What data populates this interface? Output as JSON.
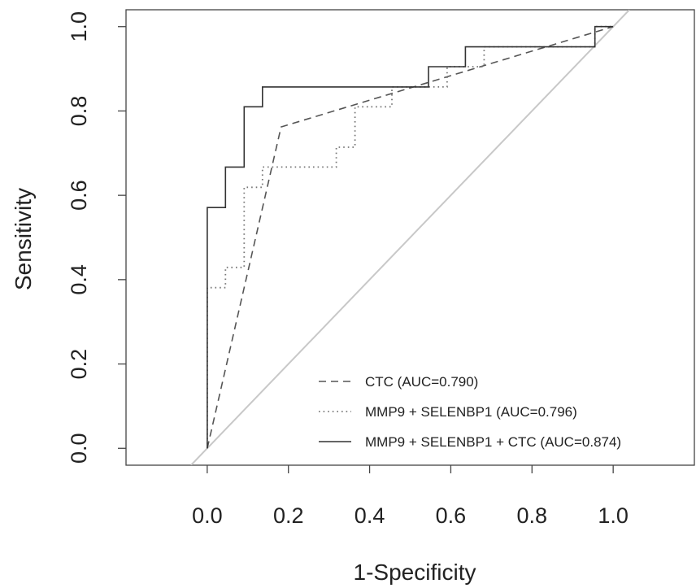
{
  "chart_data": {
    "type": "line",
    "title": "",
    "xlabel": "1-Specificity",
    "ylabel": "Sensitivity",
    "xlim": [
      -0.2,
      1.2
    ],
    "ylim": [
      -0.04,
      1.04
    ],
    "x_ticks": [
      "0.0",
      "0.2",
      "0.4",
      "0.6",
      "0.8",
      "1.0"
    ],
    "y_ticks": [
      "0.0",
      "0.2",
      "0.4",
      "0.6",
      "0.8",
      "1.0"
    ],
    "grid": false,
    "legend_position": "bottom-right",
    "reference_line": {
      "x": [
        -0.04,
        1.04
      ],
      "y": [
        -0.04,
        1.04
      ],
      "color": "#c8c8c8"
    },
    "series": [
      {
        "name": "CTC (AUC=0.790)",
        "style": "dashed",
        "color": "#555555",
        "x": [
          0.0,
          0.182,
          1.0
        ],
        "y": [
          0.0,
          0.762,
          1.0
        ]
      },
      {
        "name": "MMP9 + SELENBP1 (AUC=0.796)",
        "style": "dotted",
        "color": "#777777",
        "x": [
          0.0,
          0.0,
          0.045,
          0.045,
          0.091,
          0.091,
          0.136,
          0.136,
          0.318,
          0.318,
          0.364,
          0.364,
          0.455,
          0.455,
          0.591,
          0.591,
          0.682,
          0.682,
          0.955,
          0.955,
          1.0
        ],
        "y": [
          0.0,
          0.381,
          0.381,
          0.429,
          0.429,
          0.619,
          0.619,
          0.667,
          0.667,
          0.714,
          0.714,
          0.81,
          0.81,
          0.857,
          0.857,
          0.905,
          0.905,
          0.952,
          0.952,
          1.0,
          1.0
        ]
      },
      {
        "name": "MMP9 + SELENBP1 + CTC (AUC=0.874)",
        "style": "solid",
        "color": "#333333",
        "x": [
          0.0,
          0.0,
          0.045,
          0.045,
          0.091,
          0.091,
          0.136,
          0.136,
          0.545,
          0.545,
          0.636,
          0.636,
          0.955,
          0.955,
          1.0
        ],
        "y": [
          0.0,
          0.571,
          0.571,
          0.667,
          0.667,
          0.81,
          0.81,
          0.857,
          0.857,
          0.905,
          0.905,
          0.952,
          0.952,
          1.0,
          1.0
        ]
      }
    ]
  }
}
